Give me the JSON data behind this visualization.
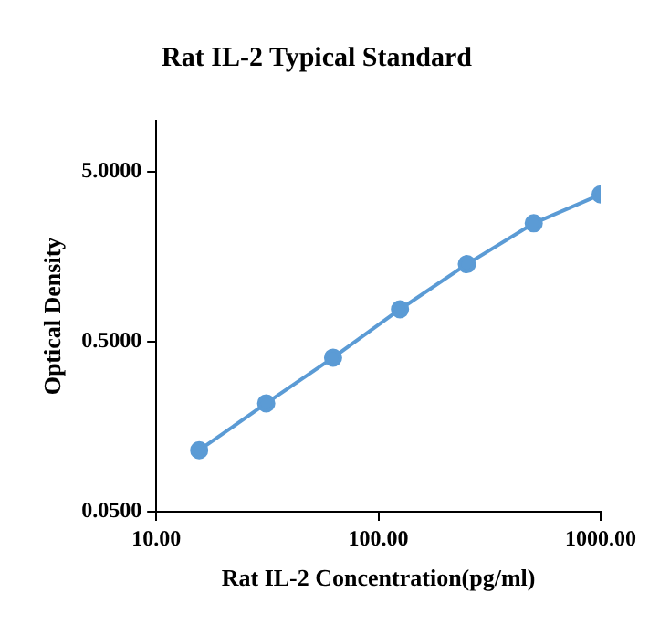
{
  "chart_data": {
    "type": "line",
    "title": "Rat IL-2 Typical Standard",
    "xlabel": "Rat IL-2 Concentration(pg/ml)",
    "ylabel": "Optical Density",
    "log": "xy",
    "grid": false,
    "legend": false,
    "marker": "circle",
    "line_style": "solid",
    "xlim": [
      10,
      1000
    ],
    "xticks": [
      {
        "value": 10,
        "label": "10.00"
      },
      {
        "value": 100,
        "label": "100.00"
      },
      {
        "value": 1000,
        "label": "1000.00"
      }
    ],
    "ylim": [
      0.05,
      10
    ],
    "yticks": [
      {
        "value": 0.05,
        "label": "0.0500"
      },
      {
        "value": 0.5,
        "label": "0.5000"
      },
      {
        "value": 5,
        "label": "5.0000"
      }
    ],
    "x": [
      15.6,
      31.25,
      62.5,
      125,
      250,
      500,
      1000
    ],
    "series": [
      {
        "color": "#5b9bd5",
        "values": [
          0.115,
          0.217,
          0.403,
          0.776,
          1.43,
          2.49,
          3.68
        ]
      }
    ]
  }
}
